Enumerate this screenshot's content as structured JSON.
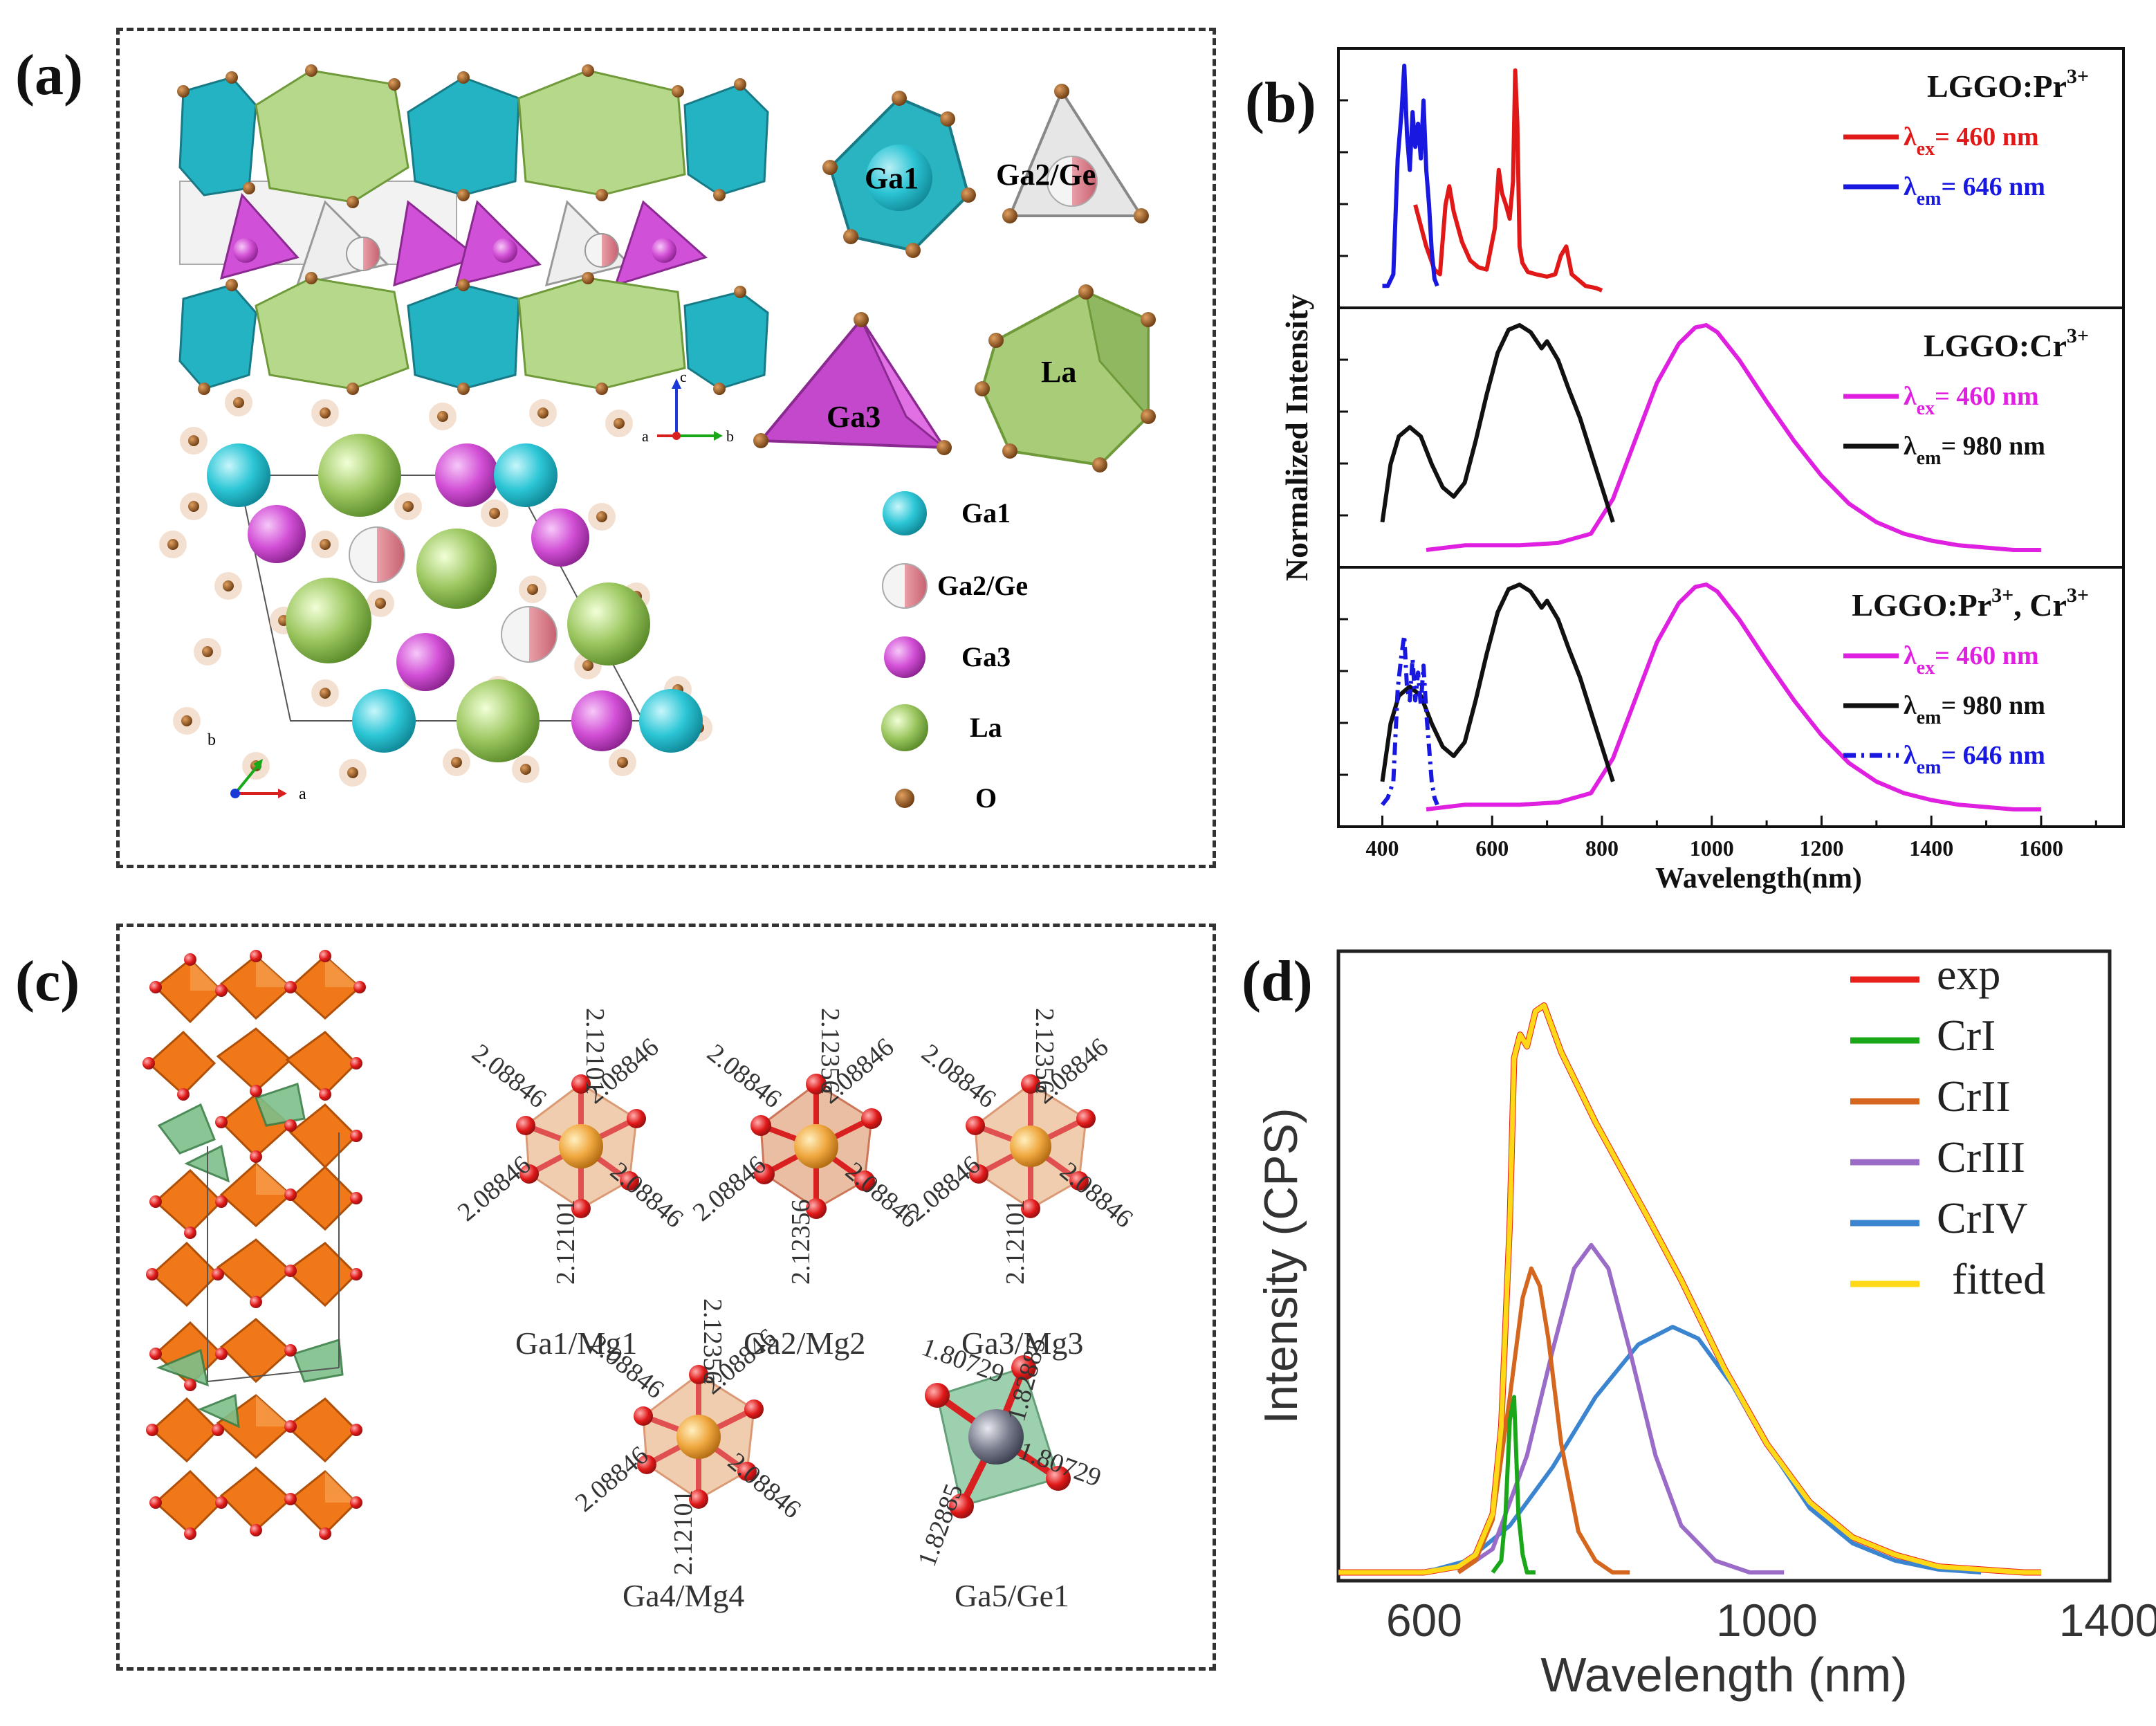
{
  "panel_labels": {
    "a": "(a)",
    "b": "(b)",
    "c": "(c)",
    "d": "(d)"
  },
  "panel_a": {
    "poly_labels": {
      "ga1": "Ga1",
      "ga2ge": "Ga2/Ge",
      "ga3": "Ga3",
      "la": "La"
    },
    "legend": [
      {
        "label": "Ga1",
        "color": "#2cc6d6"
      },
      {
        "label": "Ga2/Ge",
        "color": "#e8a0a8"
      },
      {
        "label": "Ga3",
        "color": "#d24fd6"
      },
      {
        "label": "La",
        "color": "#9cc760"
      },
      {
        "label": "O",
        "color": "#8a5020"
      }
    ],
    "axes_top": {
      "c": "c",
      "a": "a",
      "b": "b"
    },
    "axes_bottom": {
      "b": "b",
      "a": "a"
    }
  },
  "panel_c": {
    "sites": [
      {
        "label": "Ga1/Mg1",
        "bonds": [
          "2.12101",
          "2.08846",
          "2.08846",
          "2.08846",
          "2.08846",
          "2.12101"
        ]
      },
      {
        "label": "Ga2/Mg2",
        "bonds": [
          "2.12356",
          "2.08846",
          "2.08846",
          "2.08846",
          "2.08846",
          "2.12356"
        ]
      },
      {
        "label": "Ga3/Mg3",
        "bonds": [
          "2.12356",
          "2.08846",
          "2.08846",
          "2.08846",
          "2.08846",
          "2.12101"
        ]
      },
      {
        "label": "Ga4/Mg4",
        "bonds": [
          "2.12356",
          "2.08846",
          "2.08846",
          "2.08846",
          "2.08846",
          "2.12101"
        ]
      },
      {
        "label": "Ga5/Ge1",
        "bonds": [
          "1.80729",
          "1.82885",
          "1.80729",
          "1.82885"
        ]
      }
    ]
  },
  "chart_data": [
    {
      "panel": "b",
      "type": "line",
      "xlabel": "Wavelength(nm)",
      "ylabel": "Normalized Intensity",
      "xlim": [
        320,
        1750
      ],
      "ylim": [
        0,
        1.05
      ],
      "xticks": [
        400,
        600,
        800,
        1000,
        1200,
        1400,
        1600
      ],
      "subplots": [
        {
          "title": "LGGO:Pr",
          "title_sup": "3+",
          "series": [
            {
              "name": "λex= 460 nm",
              "name_main": "λ",
              "name_sub": "ex",
              "name_rest": "= 460 nm",
              "color": "#e01818",
              "style": "solid",
              "x": [
                460,
                480,
                495,
                505,
                515,
                522,
                530,
                545,
                560,
                575,
                590,
                605,
                612,
                618,
                625,
                632,
                638,
                642,
                646,
                650,
                655,
                665,
                680,
                700,
                715,
                725,
                735,
                745,
                755,
                770,
                790,
                800
              ],
              "y": [
                0.4,
                0.22,
                0.12,
                0.1,
                0.4,
                0.48,
                0.37,
                0.24,
                0.16,
                0.13,
                0.12,
                0.3,
                0.55,
                0.45,
                0.4,
                0.34,
                0.5,
                0.98,
                0.75,
                0.22,
                0.15,
                0.11,
                0.1,
                0.09,
                0.1,
                0.18,
                0.22,
                0.1,
                0.08,
                0.05,
                0.04,
                0.03
              ]
            },
            {
              "name": "λem= 646 nm",
              "name_main": "λ",
              "name_sub": "em",
              "name_rest": "= 646 nm",
              "color": "#1818e0",
              "style": "solid",
              "x": [
                400,
                410,
                420,
                428,
                435,
                440,
                445,
                450,
                455,
                460,
                465,
                470,
                475,
                480,
                485,
                490,
                495,
                500
              ],
              "y": [
                0.05,
                0.05,
                0.1,
                0.6,
                0.8,
                1.0,
                0.7,
                0.55,
                0.8,
                0.65,
                0.75,
                0.6,
                0.85,
                0.55,
                0.4,
                0.2,
                0.08,
                0.05
              ]
            }
          ]
        },
        {
          "title": "LGGO:Cr",
          "title_sup": "3+",
          "series": [
            {
              "name": "λex= 460 nm",
              "name_main": "λ",
              "name_sub": "ex",
              "name_rest": "= 460 nm",
              "color": "#e020e0",
              "style": "solid",
              "x": [
                480,
                550,
                650,
                720,
                780,
                820,
                860,
                900,
                940,
                970,
                990,
                1010,
                1050,
                1100,
                1150,
                1200,
                1250,
                1300,
                1350,
                1400,
                1450,
                1500,
                1550,
                1600
              ],
              "y": [
                0.03,
                0.05,
                0.05,
                0.06,
                0.1,
                0.25,
                0.5,
                0.75,
                0.92,
                0.99,
                1.0,
                0.97,
                0.85,
                0.67,
                0.5,
                0.35,
                0.23,
                0.15,
                0.1,
                0.07,
                0.05,
                0.04,
                0.03,
                0.03
              ]
            },
            {
              "name": "λem= 980 nm",
              "name_main": "λ",
              "name_sub": "em",
              "name_rest": "= 980 nm",
              "color": "#111111",
              "style": "solid",
              "x": [
                400,
                415,
                430,
                450,
                470,
                490,
                510,
                530,
                550,
                570,
                590,
                610,
                630,
                650,
                670,
                690,
                700,
                720,
                740,
                760,
                780,
                800,
                820
              ],
              "y": [
                0.15,
                0.4,
                0.52,
                0.56,
                0.52,
                0.4,
                0.3,
                0.26,
                0.32,
                0.5,
                0.7,
                0.88,
                0.98,
                1.0,
                0.97,
                0.9,
                0.93,
                0.85,
                0.72,
                0.6,
                0.45,
                0.3,
                0.15
              ]
            }
          ]
        },
        {
          "title": "LGGO:Pr",
          "title_sup": "3+",
          "title_rest": ", Cr",
          "title_sup2": "3+",
          "series": [
            {
              "name": "λex= 460 nm",
              "name_main": "λ",
              "name_sub": "ex",
              "name_rest": "= 460 nm",
              "color": "#e020e0",
              "style": "solid",
              "x": [
                480,
                550,
                650,
                720,
                780,
                820,
                860,
                900,
                940,
                970,
                990,
                1010,
                1050,
                1100,
                1150,
                1200,
                1250,
                1300,
                1350,
                1400,
                1450,
                1500,
                1550,
                1600
              ],
              "y": [
                0.03,
                0.05,
                0.05,
                0.06,
                0.1,
                0.25,
                0.5,
                0.75,
                0.92,
                0.99,
                1.0,
                0.97,
                0.85,
                0.67,
                0.5,
                0.35,
                0.23,
                0.15,
                0.1,
                0.07,
                0.05,
                0.04,
                0.03,
                0.03
              ]
            },
            {
              "name": "λem= 980 nm",
              "name_main": "λ",
              "name_sub": "em",
              "name_rest": "= 980 nm",
              "color": "#111111",
              "style": "solid",
              "x": [
                400,
                415,
                430,
                450,
                470,
                490,
                510,
                530,
                550,
                570,
                590,
                610,
                630,
                650,
                670,
                690,
                700,
                720,
                740,
                760,
                780,
                800,
                820
              ],
              "y": [
                0.15,
                0.4,
                0.52,
                0.56,
                0.52,
                0.4,
                0.3,
                0.26,
                0.32,
                0.5,
                0.7,
                0.88,
                0.98,
                1.0,
                0.97,
                0.9,
                0.93,
                0.85,
                0.72,
                0.6,
                0.45,
                0.3,
                0.15
              ]
            },
            {
              "name": "λem= 646 nm",
              "name_main": "λ",
              "name_sub": "em",
              "name_rest": "= 646 nm",
              "color": "#1818e0",
              "style": "dashdot",
              "x": [
                400,
                410,
                420,
                428,
                435,
                440,
                445,
                450,
                455,
                460,
                465,
                470,
                475,
                480,
                485,
                490,
                495,
                500
              ],
              "y": [
                0.05,
                0.08,
                0.15,
                0.55,
                0.7,
                0.78,
                0.55,
                0.5,
                0.68,
                0.5,
                0.62,
                0.48,
                0.65,
                0.45,
                0.3,
                0.15,
                0.08,
                0.05
              ]
            }
          ]
        }
      ]
    },
    {
      "panel": "d",
      "type": "line",
      "xlabel": "Wavelength (nm)",
      "ylabel": "Intensity (CPS)",
      "xlim": [
        500,
        1400
      ],
      "ylim": [
        0,
        1.05
      ],
      "xticks": [
        600,
        1000,
        1400
      ],
      "series": [
        {
          "name": "exp",
          "color": "#e8201c",
          "x": [
            500,
            600,
            640,
            660,
            680,
            690,
            700,
            705,
            712,
            720,
            730,
            740,
            750,
            760,
            780,
            800,
            830,
            860,
            900,
            950,
            1000,
            1050,
            1100,
            1150,
            1200,
            1300,
            1320
          ],
          "y": [
            0.0,
            0.0,
            0.01,
            0.03,
            0.1,
            0.25,
            0.6,
            0.88,
            0.92,
            0.9,
            0.96,
            0.97,
            0.93,
            0.89,
            0.83,
            0.77,
            0.69,
            0.61,
            0.5,
            0.35,
            0.22,
            0.12,
            0.06,
            0.03,
            0.01,
            0.0,
            0.0
          ]
        },
        {
          "name": "CrI",
          "color": "#1aa81a",
          "x": [
            680,
            690,
            695,
            700,
            705,
            710,
            715,
            720,
            730
          ],
          "y": [
            0.0,
            0.02,
            0.1,
            0.26,
            0.3,
            0.1,
            0.03,
            0.0,
            0.0
          ]
        },
        {
          "name": "CrII",
          "color": "#d4661e",
          "x": [
            640,
            660,
            680,
            700,
            715,
            725,
            735,
            745,
            760,
            780,
            800,
            820,
            840
          ],
          "y": [
            0.0,
            0.02,
            0.09,
            0.3,
            0.47,
            0.52,
            0.49,
            0.4,
            0.22,
            0.07,
            0.02,
            0.0,
            0.0
          ]
        },
        {
          "name": "CrIII",
          "color": "#9a6cc8",
          "x": [
            640,
            680,
            720,
            750,
            775,
            795,
            815,
            840,
            870,
            900,
            940,
            980,
            1020
          ],
          "y": [
            0.0,
            0.04,
            0.2,
            0.38,
            0.52,
            0.56,
            0.52,
            0.38,
            0.2,
            0.08,
            0.02,
            0.0,
            0.0
          ]
        },
        {
          "name": "CrIV",
          "color": "#3a84d0",
          "x": [
            600,
            650,
            700,
            750,
            800,
            850,
            890,
            920,
            960,
            1000,
            1050,
            1100,
            1150,
            1200,
            1250
          ],
          "y": [
            0.0,
            0.02,
            0.08,
            0.18,
            0.3,
            0.39,
            0.42,
            0.4,
            0.32,
            0.22,
            0.11,
            0.05,
            0.02,
            0.005,
            0.0
          ]
        },
        {
          "name": "fitted",
          "color": "#ffd818",
          "x": [
            500,
            600,
            640,
            660,
            680,
            690,
            700,
            705,
            712,
            720,
            730,
            740,
            750,
            760,
            780,
            800,
            830,
            860,
            900,
            950,
            1000,
            1050,
            1100,
            1150,
            1200,
            1300,
            1320
          ],
          "y": [
            0.0,
            0.0,
            0.01,
            0.03,
            0.1,
            0.25,
            0.6,
            0.88,
            0.92,
            0.9,
            0.96,
            0.97,
            0.93,
            0.89,
            0.83,
            0.77,
            0.69,
            0.61,
            0.5,
            0.35,
            0.22,
            0.12,
            0.06,
            0.03,
            0.01,
            0.0,
            0.0
          ]
        }
      ]
    }
  ]
}
